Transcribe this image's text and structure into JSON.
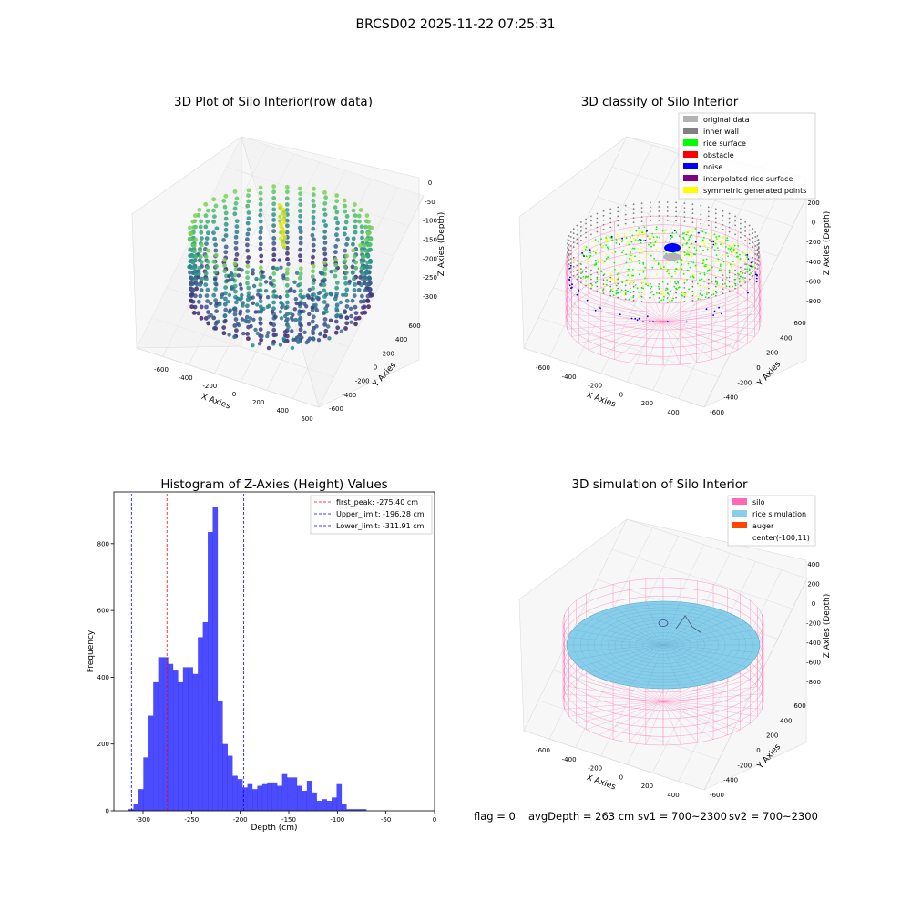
{
  "figure": {
    "title": "BRCSD02 2025-11-22 07:25:31",
    "footer": {
      "flag": "flag = 0",
      "avg_depth": "avgDepth = 263 cm",
      "sv1": "sv1 = 700~2300",
      "sv2": "sv2 = 700~2300"
    }
  },
  "chart_data": [
    {
      "type": "scatter",
      "title": "3D Plot of Silo Interior(row data)",
      "xlabel": "X Axies",
      "ylabel": "Y Axies",
      "zlabel": "Z Axies (Depth)",
      "x_ticks": [
        "-600",
        "-400",
        "-200",
        "0",
        "200",
        "400",
        "600"
      ],
      "y_ticks": [
        "600",
        "400",
        "200",
        "0",
        "-200",
        "-400",
        "-600"
      ],
      "z_ticks": [
        "0",
        "-50",
        "-100",
        "-150",
        "-200",
        "-250",
        "-300"
      ],
      "zlim": [
        -330,
        0
      ],
      "colormap": "viridis"
    },
    {
      "type": "scatter",
      "title": "3D classify of Silo Interior",
      "xlabel": "X Axies",
      "ylabel": "Y Axies",
      "zlabel": "Z Axies (Depth)",
      "x_ticks": [
        "-600",
        "-400",
        "-200",
        "0",
        "200",
        "400"
      ],
      "y_ticks": [
        "600",
        "400",
        "200",
        "0",
        "-200",
        "-400",
        "-600"
      ],
      "z_ticks": [
        "200",
        "0",
        "-200",
        "-400",
        "-600",
        "-800"
      ],
      "legend_position": "top-right",
      "legend": [
        {
          "label": "original data",
          "color": "#b3b3b3"
        },
        {
          "label": "inner wall",
          "color": "#808080"
        },
        {
          "label": "rice surface",
          "color": "#00ff00"
        },
        {
          "label": "obstacle",
          "color": "#ff0000"
        },
        {
          "label": "noise",
          "color": "#0000ff"
        },
        {
          "label": "interpolated rice surface",
          "color": "#800080"
        },
        {
          "label": "symmetric generated points",
          "color": "#ffff00"
        }
      ]
    },
    {
      "type": "bar",
      "title": "Histogram of Z-Axies (Height) Values",
      "xlabel": "Depth (cm)",
      "ylabel": "Frequency",
      "xlim": [
        -330,
        0
      ],
      "ylim": [
        0,
        955
      ],
      "x_ticks": [
        -300,
        -250,
        -200,
        -150,
        -100,
        -50,
        0
      ],
      "y_ticks": [
        0,
        200,
        400,
        600,
        800
      ],
      "bar_color": "#0000ff",
      "bin_start": -315,
      "bin_width": 5.1,
      "values": [
        5,
        20,
        65,
        160,
        285,
        385,
        460,
        460,
        440,
        420,
        385,
        430,
        430,
        410,
        520,
        565,
        835,
        910,
        330,
        200,
        165,
        105,
        95,
        70,
        80,
        65,
        75,
        80,
        85,
        85,
        75,
        110,
        100,
        100,
        75,
        60,
        90,
        55,
        30,
        35,
        30,
        40,
        80,
        20,
        5,
        5,
        5,
        5
      ],
      "legend_position": "top-right",
      "reference_lines": [
        {
          "label": "first_peak: -275.40 cm",
          "x": -275.4,
          "color": "#ff0000"
        },
        {
          "label": "Upper_limit: -196.28 cm",
          "x": -196.28,
          "color": "#0000ff"
        },
        {
          "label": "Lower_limit: -311.91 cm",
          "x": -311.91,
          "color": "#0000ff"
        }
      ]
    },
    {
      "type": "scatter",
      "title": "3D simulation of Silo Interior",
      "xlabel": "X Axies",
      "ylabel": "Y Axies",
      "zlabel": "Z Axies (Depth)",
      "x_ticks": [
        "-600",
        "-400",
        "-200",
        "0",
        "200",
        "400"
      ],
      "y_ticks": [
        "600",
        "400",
        "200",
        "0",
        "-200",
        "-400",
        "-600"
      ],
      "z_ticks": [
        "400",
        "200",
        "0",
        "-200",
        "-400",
        "-600",
        "-800"
      ],
      "legend_position": "top-right",
      "legend": [
        {
          "label": "silo",
          "color": "#ff69b4"
        },
        {
          "label": "rice simulation",
          "color": "#87ceeb"
        },
        {
          "label": "auger",
          "color": "#ff4500"
        },
        {
          "label": "center(-100,11)",
          "color": "none"
        }
      ]
    }
  ]
}
